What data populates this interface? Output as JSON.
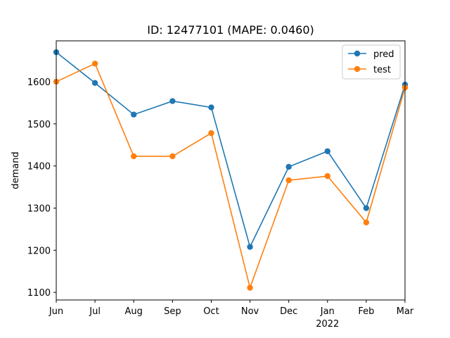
{
  "chart_data": {
    "type": "line",
    "title": "ID: 12477101 (MAPE: 0.0460)",
    "xlabel": "",
    "ylabel": "demand",
    "x": [
      "Jun",
      "Jul",
      "Aug",
      "Sep",
      "Oct",
      "Nov",
      "Dec",
      "Jan",
      "Feb",
      "Mar"
    ],
    "x_sublabels": {
      "Jan": "2022"
    },
    "ylim": [
      1082,
      1697
    ],
    "yticks": [
      1100,
      1200,
      1300,
      1400,
      1500,
      1600
    ],
    "grid": false,
    "legend": "top-right",
    "series": [
      {
        "name": "pred",
        "color": "#1f77b4",
        "values": [
          1670,
          1597,
          1522,
          1554,
          1539,
          1208,
          1398,
          1435,
          1300,
          1593
        ]
      },
      {
        "name": "test",
        "color": "#ff7f0e",
        "values": [
          1600,
          1643,
          1423,
          1423,
          1478,
          1111,
          1366,
          1376,
          1266,
          1586
        ]
      }
    ]
  }
}
